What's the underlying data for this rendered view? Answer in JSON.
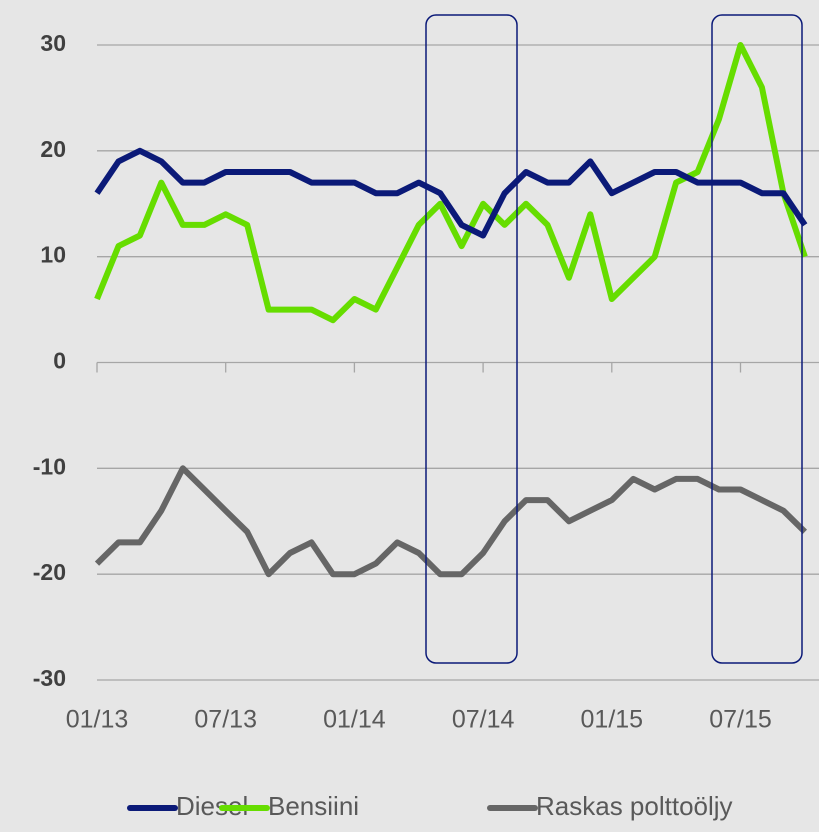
{
  "chart_data": {
    "type": "line",
    "x": [
      "01/13",
      "02/13",
      "03/13",
      "04/13",
      "05/13",
      "06/13",
      "07/13",
      "08/13",
      "09/13",
      "10/13",
      "11/13",
      "12/13",
      "01/14",
      "02/14",
      "03/14",
      "04/14",
      "05/14",
      "06/14",
      "07/14",
      "08/14",
      "09/14",
      "10/14",
      "11/14",
      "12/14",
      "01/15",
      "02/15",
      "03/15",
      "04/15",
      "05/15",
      "06/15",
      "07/15",
      "08/15",
      "09/15",
      "10/15"
    ],
    "series": [
      {
        "name": "Diesel",
        "color": "#0b1a78",
        "values": [
          16,
          19,
          20,
          19,
          17,
          17,
          18,
          18,
          18,
          18,
          17,
          17,
          17,
          16,
          16,
          17,
          16,
          13,
          12,
          16,
          18,
          17,
          17,
          19,
          16,
          17,
          18,
          18,
          17,
          17,
          17,
          16,
          16,
          13
        ]
      },
      {
        "name": "Bensiini",
        "color": "#66dd00",
        "values": [
          6,
          11,
          12,
          17,
          13,
          13,
          14,
          13,
          5,
          5,
          5,
          4,
          6,
          5,
          9,
          13,
          15,
          11,
          15,
          13,
          15,
          13,
          8,
          14,
          6,
          8,
          10,
          17,
          18,
          23,
          30,
          26,
          16,
          10
        ]
      },
      {
        "name": "Raskas polttoöljy",
        "color": "#666666",
        "values": [
          -19,
          -17,
          -17,
          -14,
          -10,
          -12,
          -14,
          -16,
          -20,
          -18,
          -17,
          -20,
          -20,
          -19,
          -17,
          -18,
          -20,
          -20,
          -18,
          -15,
          -13,
          -13,
          -15,
          -14,
          -13,
          -11,
          -12,
          -11,
          -11,
          -12,
          -12,
          -13,
          -14,
          -16
        ]
      }
    ],
    "ylim": [
      -30,
      30
    ],
    "yticks": [
      -30,
      -20,
      -10,
      0,
      10,
      20,
      30
    ],
    "xticks": [
      "01/13",
      "07/13",
      "01/14",
      "07/14",
      "01/15",
      "07/15"
    ],
    "grid": true
  }
}
